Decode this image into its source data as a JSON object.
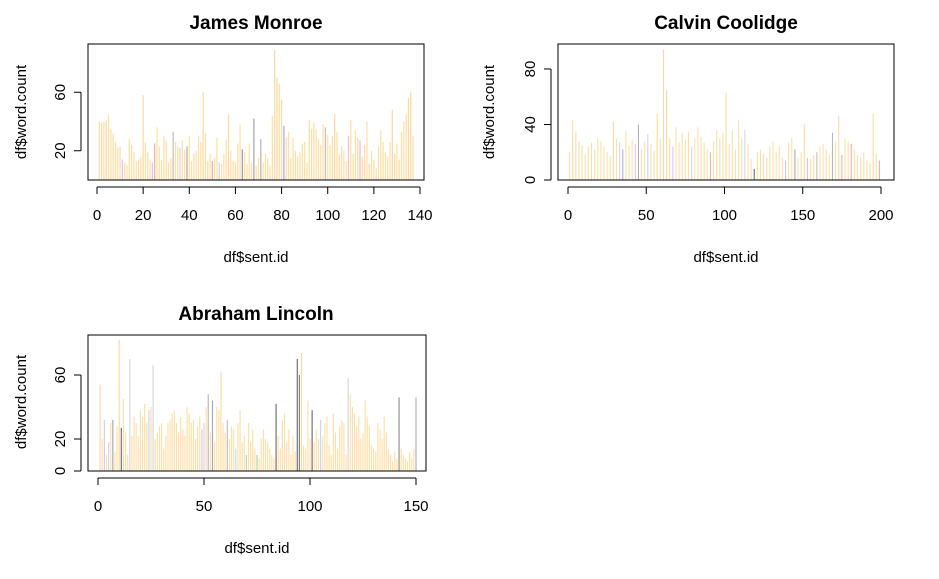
{
  "figure": {
    "ylabel": "df$word.count",
    "xlabel": "df$sent.id"
  },
  "chart_data": [
    {
      "type": "bar",
      "title": "James Monroe",
      "xlabel": "df$sent.id",
      "ylabel": "df$word.count",
      "xlim": [
        0,
        140
      ],
      "ylim": [
        0,
        93
      ],
      "xticks": [
        0,
        20,
        40,
        60,
        80,
        100,
        120,
        140
      ],
      "yticks": [
        20,
        60
      ],
      "grid": false,
      "x": [
        1,
        2,
        3,
        4,
        5,
        6,
        7,
        8,
        9,
        10,
        11,
        12,
        13,
        14,
        15,
        16,
        17,
        18,
        19,
        20,
        21,
        22,
        23,
        24,
        25,
        26,
        27,
        28,
        29,
        30,
        31,
        32,
        33,
        34,
        35,
        36,
        37,
        38,
        39,
        40,
        41,
        42,
        43,
        44,
        45,
        46,
        47,
        48,
        49,
        50,
        51,
        52,
        53,
        54,
        55,
        56,
        57,
        58,
        59,
        60,
        61,
        62,
        63,
        64,
        65,
        66,
        67,
        68,
        69,
        70,
        71,
        72,
        73,
        74,
        75,
        76,
        77,
        78,
        79,
        80,
        81,
        82,
        83,
        84,
        85,
        86,
        87,
        88,
        89,
        90,
        91,
        92,
        93,
        94,
        95,
        96,
        97,
        98,
        99,
        100,
        101,
        102,
        103,
        104,
        105,
        106,
        107,
        108,
        109,
        110,
        111,
        112,
        113,
        114,
        115,
        116,
        117,
        118,
        119,
        120,
        121,
        122,
        123,
        124,
        125,
        126,
        127,
        128,
        129,
        130,
        131,
        132,
        133,
        134,
        135,
        136,
        137
      ],
      "values": [
        40,
        39,
        40,
        41,
        45,
        35,
        32,
        26,
        22,
        23,
        14,
        12,
        10,
        28,
        24,
        19,
        13,
        14,
        16,
        58,
        26,
        19,
        14,
        12,
        25,
        36,
        23,
        14,
        30,
        27,
        12,
        15,
        33,
        26,
        23,
        22,
        27,
        21,
        23,
        30,
        13,
        18,
        20,
        30,
        26,
        60,
        32,
        13,
        18,
        13,
        15,
        29,
        12,
        11,
        18,
        27,
        45,
        20,
        13,
        12,
        25,
        38,
        21,
        19,
        11,
        25,
        12,
        42,
        10,
        15,
        28,
        12,
        18,
        15,
        10,
        44,
        89,
        70,
        66,
        55,
        37,
        29,
        33,
        15,
        29,
        20,
        16,
        19,
        25,
        26,
        12,
        41,
        35,
        39,
        35,
        28,
        24,
        38,
        36,
        31,
        24,
        30,
        45,
        33,
        17,
        23,
        20,
        13,
        30,
        41,
        18,
        34,
        29,
        27,
        16,
        24,
        40,
        11,
        20,
        14,
        8,
        23,
        34,
        26,
        19,
        16,
        26,
        48,
        18,
        25,
        14,
        33,
        40,
        45,
        56,
        60,
        30
      ],
      "colors": [
        "#FFDFA8",
        "#FFDFA8",
        "#FFDFA8",
        "#FFD9A0",
        "#FFDFA8",
        "#FFDFA8",
        "#FFDFA8",
        "#FFDFA8",
        "#FFDFA8",
        "#FFDFA8",
        "#D8C8F0",
        "#FFDFA8",
        "#FFDFA8",
        "#FFDFA8",
        "#FFDFA8",
        "#FFDFA8",
        "#FFDFA8",
        "#FFDFA8",
        "#FFDFA8",
        "#FFD9A0",
        "#FFDFA8",
        "#FFDFA8",
        "#FFDFA8",
        "#D8C8F0",
        "#F4B0A8",
        "#FFDFA8",
        "#FFDFA8",
        "#FFDFA8",
        "#FFDFA8",
        "#FFDFA8",
        "#FFDFA8",
        "#FFDFA8",
        "#C0C0C0",
        "#FFDFA8",
        "#FFDFA8",
        "#D8D8D8",
        "#FFDFA8",
        "#FFDFA8",
        "#B0B0B0",
        "#FFDFA8",
        "#FFDFA8",
        "#FFDFA8",
        "#FFDFA8",
        "#FFDFA8",
        "#FFDFA8",
        "#FFD9A0",
        "#FFDFA8",
        "#FFDFA8",
        "#FFDFA8",
        "#F4B0A8",
        "#FFDFA8",
        "#FFDFA8",
        "#C8D8F0",
        "#FFDFA8",
        "#FFDFA8",
        "#FFDFA8",
        "#FFD9A0",
        "#FFDFA8",
        "#FFDFA8",
        "#FFDFA8",
        "#FFDFA8",
        "#FFDFA8",
        "#A0A0A0",
        "#FFDFA8",
        "#FFDFA8",
        "#FFDFA8",
        "#FFDFA8",
        "#A8A8A8",
        "#FFDFA8",
        "#FFDFA8",
        "#B8B8B8",
        "#FFDFA8",
        "#FFDFA8",
        "#FFDFA8",
        "#FFDFA8",
        "#FFDFA8",
        "#FFD9A0",
        "#FFD9A0",
        "#FFDFA8",
        "#FFDFA8",
        "#B8A8E0",
        "#FFDFA8",
        "#FFDFA8",
        "#FFDFA8",
        "#FFDFA8",
        "#FFDFA8",
        "#FFDFA8",
        "#FFDFA8",
        "#FFDFA8",
        "#FFDFA8",
        "#FFDFA8",
        "#FFDFA8",
        "#FFDFA8",
        "#FFDFA8",
        "#FFDFA8",
        "#FFDFA8",
        "#FFDFA8",
        "#FFDFA8",
        "#C0C0C0",
        "#FFDFA8",
        "#FFDFA8",
        "#FFDFA8",
        "#FFD9A0",
        "#FFDFA8",
        "#FFDFA8",
        "#FFDFA8",
        "#FFDFA8",
        "#FFDFA8",
        "#F8C0C0",
        "#FFDFA8",
        "#FFDFA8",
        "#FFDFA8",
        "#FFDFA8",
        "#F4B8D0",
        "#FFDFA8",
        "#FFDFA8",
        "#FFDFA8",
        "#FFDFA8",
        "#FFDFA8",
        "#FFDFA8",
        "#FFDFA8",
        "#FFDFA8",
        "#FFDFA8",
        "#FFDFA8",
        "#FFDFA8",
        "#FFDFA8",
        "#FFDFA8",
        "#FFD9A0",
        "#FFDFA8",
        "#FFDFA8",
        "#FFDFA8",
        "#FFDFA8",
        "#FFDFA8",
        "#FFDFA8",
        "#FFD9A0",
        "#FFD9A0",
        "#FFDFA8"
      ]
    },
    {
      "type": "bar",
      "title": "Calvin Coolidge",
      "xlabel": "df$sent.id",
      "ylabel": "df$word.count",
      "xlim": [
        0,
        200
      ],
      "ylim": [
        0,
        98
      ],
      "xticks": [
        0,
        50,
        100,
        150,
        200
      ],
      "yticks": [
        0,
        40,
        80
      ],
      "grid": false,
      "x": [
        1,
        3,
        5,
        7,
        9,
        11,
        13,
        15,
        17,
        19,
        21,
        23,
        25,
        27,
        29,
        31,
        33,
        35,
        37,
        39,
        41,
        43,
        45,
        47,
        49,
        51,
        53,
        55,
        57,
        59,
        61,
        63,
        65,
        67,
        69,
        71,
        73,
        75,
        77,
        79,
        81,
        83,
        85,
        87,
        89,
        91,
        93,
        95,
        97,
        99,
        101,
        103,
        105,
        107,
        109,
        111,
        113,
        115,
        117,
        119,
        121,
        123,
        125,
        127,
        129,
        131,
        133,
        135,
        137,
        139,
        141,
        143,
        145,
        147,
        149,
        151,
        153,
        155,
        157,
        159,
        161,
        163,
        165,
        167,
        169,
        171,
        173,
        175,
        177,
        179,
        181,
        183,
        185,
        187,
        189,
        191,
        193,
        195,
        197,
        199
      ],
      "values": [
        20,
        43,
        35,
        28,
        25,
        18,
        24,
        27,
        22,
        30,
        28,
        24,
        20,
        17,
        42,
        30,
        27,
        22,
        35,
        25,
        29,
        26,
        40,
        22,
        28,
        33,
        26,
        21,
        48,
        30,
        94,
        65,
        30,
        24,
        38,
        27,
        34,
        29,
        35,
        24,
        30,
        38,
        31,
        27,
        22,
        20,
        28,
        36,
        30,
        34,
        63,
        26,
        36,
        22,
        43,
        30,
        36,
        26,
        15,
        8,
        20,
        22,
        19,
        16,
        24,
        28,
        20,
        24,
        16,
        14,
        27,
        30,
        22,
        16,
        20,
        40,
        16,
        15,
        18,
        20,
        24,
        26,
        22,
        18,
        34,
        28,
        46,
        18,
        30,
        28,
        26,
        22,
        18,
        16,
        20,
        14,
        12,
        48,
        19,
        14
      ],
      "colors": [
        "#FFDFA8",
        "#FFD9A0",
        "#FFDFA8",
        "#FFDFA8",
        "#FFDFA8",
        "#FFDFA8",
        "#FFDFA8",
        "#FFDFA8",
        "#FFDFA8",
        "#FFDFA8",
        "#FFDFA8",
        "#FFDFA8",
        "#FFDFA8",
        "#FFDFA8",
        "#FFD9A0",
        "#FFDFA8",
        "#C8D8F0",
        "#B8A8E0",
        "#FFDFA8",
        "#FFDFA8",
        "#FFDFA8",
        "#D8C8F0",
        "#B0B0B0",
        "#FFDFA8",
        "#FFDFA8",
        "#C8D8F0",
        "#FFDFA8",
        "#FFDFA8",
        "#FFD9A0",
        "#FFDFA8",
        "#FFD9A0",
        "#FFD9A0",
        "#FFDFA8",
        "#D8C8F0",
        "#FFDFA8",
        "#FFDFA8",
        "#FFDFA8",
        "#FFDFA8",
        "#FFDFA8",
        "#C8D8F0",
        "#FFDFA8",
        "#FFDFA8",
        "#FFDFA8",
        "#FFDFA8",
        "#FFDFA8",
        "#F4B0A8",
        "#FFDFA8",
        "#FFDFA8",
        "#FFDFA8",
        "#FFDFA8",
        "#FFD9A0",
        "#FFDFA8",
        "#FFDFA8",
        "#FFDFA8",
        "#FFDFA8",
        "#FFDFA8",
        "#D8D8D8",
        "#FFDFA8",
        "#FFDFA8",
        "#707070",
        "#FFDFA8",
        "#FFDFA8",
        "#FFDFA8",
        "#FFDFA8",
        "#FFDFA8",
        "#FFDFA8",
        "#FFDFA8",
        "#FFDFA8",
        "#FFDFA8",
        "#C8C8E8",
        "#FFDFA8",
        "#FFDFA8",
        "#A8A8A8",
        "#FFDFA8",
        "#FFDFA8",
        "#FFD9A0",
        "#F4B8D0",
        "#FFDFA8",
        "#FFDFA8",
        "#C0C0C0",
        "#FFDFA8",
        "#FFDFA8",
        "#FFDFA8",
        "#FFDFA8",
        "#B8B8B8",
        "#FFDFA8",
        "#FFD9A0",
        "#F4B0A8",
        "#FFDFA8",
        "#FFDFA8",
        "#F4B0A8",
        "#FFDFA8",
        "#FFDFA8",
        "#FFDFA8",
        "#FFDFA8",
        "#FFDFA8",
        "#FFDFA8",
        "#FFD9A0",
        "#FFDFA8",
        "#F4B0A8"
      ]
    },
    {
      "type": "bar",
      "title": "Abraham Lincoln",
      "xlabel": "df$sent.id",
      "ylabel": "df$word.count",
      "xlim": [
        0,
        150
      ],
      "ylim": [
        0,
        85
      ],
      "xticks": [
        0,
        50,
        100,
        150
      ],
      "yticks": [
        0,
        20,
        60
      ],
      "grid": false,
      "x": [
        1,
        2,
        3,
        4,
        5,
        6,
        7,
        8,
        9,
        10,
        11,
        12,
        13,
        14,
        15,
        16,
        17,
        18,
        19,
        20,
        21,
        22,
        23,
        24,
        25,
        26,
        27,
        28,
        29,
        30,
        31,
        32,
        33,
        34,
        35,
        36,
        37,
        38,
        39,
        40,
        41,
        42,
        43,
        44,
        45,
        46,
        47,
        48,
        49,
        50,
        51,
        52,
        53,
        54,
        55,
        56,
        57,
        58,
        59,
        60,
        61,
        62,
        63,
        64,
        65,
        66,
        67,
        68,
        69,
        70,
        71,
        72,
        73,
        74,
        75,
        76,
        77,
        78,
        79,
        80,
        81,
        82,
        83,
        84,
        85,
        86,
        87,
        88,
        89,
        90,
        91,
        92,
        93,
        94,
        95,
        96,
        97,
        98,
        99,
        100,
        101,
        102,
        103,
        104,
        105,
        106,
        107,
        108,
        109,
        110,
        111,
        112,
        113,
        114,
        115,
        116,
        117,
        118,
        119,
        120,
        121,
        122,
        123,
        124,
        125,
        126,
        127,
        128,
        129,
        130,
        131,
        132,
        133,
        134,
        135,
        136,
        137,
        138,
        139,
        140,
        141,
        142,
        143,
        144,
        145,
        146,
        147,
        148,
        149,
        150
      ],
      "values": [
        54,
        20,
        32,
        10,
        18,
        30,
        32,
        12,
        28,
        82,
        27,
        45,
        24,
        10,
        70,
        22,
        34,
        30,
        22,
        38,
        34,
        42,
        30,
        38,
        40,
        66,
        20,
        24,
        28,
        30,
        14,
        22,
        30,
        32,
        36,
        38,
        30,
        24,
        34,
        26,
        22,
        40,
        36,
        30,
        32,
        20,
        28,
        34,
        26,
        30,
        40,
        48,
        24,
        44,
        18,
        40,
        38,
        62,
        30,
        24,
        32,
        20,
        28,
        26,
        14,
        30,
        38,
        18,
        22,
        10,
        30,
        18,
        26,
        14,
        10,
        8,
        20,
        26,
        20,
        18,
        14,
        10,
        8,
        42,
        22,
        14,
        32,
        36,
        18,
        26,
        10,
        22,
        12,
        70,
        60,
        74,
        16,
        14,
        44,
        20,
        38,
        18,
        26,
        20,
        32,
        22,
        30,
        34,
        16,
        10,
        36,
        24,
        14,
        28,
        32,
        30,
        10,
        58,
        48,
        40,
        36,
        28,
        34,
        20,
        24,
        44,
        34,
        28,
        16,
        14,
        12,
        30,
        26,
        20,
        34,
        24,
        14,
        10,
        6,
        12,
        8,
        46,
        14,
        10,
        8,
        6,
        12,
        8,
        14,
        46
      ],
      "colors": [
        "#FFD9A0",
        "#FFDFA8",
        "#D8C8F0",
        "#FFDFA8",
        "#C8D8F0",
        "#FFDFA8",
        "#A8A8A8",
        "#FFDFA8",
        "#FFDFA8",
        "#FFD9A0",
        "#707070",
        "#FFDFA8",
        "#FFDFA8",
        "#FFDFA8",
        "#D8D8D8",
        "#FFDFA8",
        "#FFDFA8",
        "#FFDFA8",
        "#FFDFA8",
        "#FFDFA8",
        "#FFDFA8",
        "#FFDFA8",
        "#FFDFA8",
        "#C8D8F0",
        "#FFDFA8",
        "#D8D8D8",
        "#FFDFA8",
        "#FFDFA8",
        "#FFDFA8",
        "#FFDFA8",
        "#FFDFA8",
        "#FFDFA8",
        "#FFDFA8",
        "#FFDFA8",
        "#FFDFA8",
        "#FFDFA8",
        "#FFDFA8",
        "#FFDFA8",
        "#FFDFA8",
        "#FFDFA8",
        "#FFDFA8",
        "#FFDFA8",
        "#FFDFA8",
        "#FFDFA8",
        "#FFDFA8",
        "#FFDFA8",
        "#FFDFA8",
        "#FFDFA8",
        "#D8C8F0",
        "#D8D8D8",
        "#FFDFA8",
        "#B8B8B8",
        "#FFDFA8",
        "#A8A8A8",
        "#FFDFA8",
        "#FFDFA8",
        "#FFDFA8",
        "#FFD9A0",
        "#FFDFA8",
        "#FFDFA8",
        "#C0C0C0",
        "#FFDFA8",
        "#FFDFA8",
        "#FFDFA8",
        "#C8D8F0",
        "#FFDFA8",
        "#FFDFA8",
        "#FFDFA8",
        "#FFDFA8",
        "#B8D8B0",
        "#FFDFA8",
        "#FFDFA8",
        "#FFDFA8",
        "#FFDFA8",
        "#A8D8A0",
        "#FFDFA8",
        "#FFDFA8",
        "#FFDFA8",
        "#FFDFA8",
        "#FFDFA8",
        "#FFDFA8",
        "#FFDFA8",
        "#FFDFA8",
        "#707070",
        "#FFDFA8",
        "#FFDFA8",
        "#FFDFA8",
        "#FFDFA8",
        "#FFDFA8",
        "#FFDFA8",
        "#FFDFA8",
        "#FFDFA8",
        "#FFDFA8",
        "#707070",
        "#808080",
        "#FFD9A0",
        "#FFDFA8",
        "#FFDFA8",
        "#FFDFA8",
        "#FFDFA8",
        "#707070",
        "#FFDFA8",
        "#FFDFA8",
        "#FFDFA8",
        "#C8D8F0",
        "#FFDFA8",
        "#FFDFA8",
        "#FFDFA8",
        "#FFDFA8",
        "#FFDFA8",
        "#FFDFA8",
        "#FFDFA8",
        "#FFDFA8",
        "#FFDFA8",
        "#FFDFA8",
        "#FFDFA8",
        "#FFDFA8",
        "#D8D8D8",
        "#FFDFA8",
        "#FFDFA8",
        "#FFDFA8",
        "#FFDFA8",
        "#FFDFA8",
        "#FFDFA8",
        "#FFDFA8",
        "#FFDFA8",
        "#FFDFA8",
        "#FFDFA8",
        "#FFDFA8",
        "#FFDFA8",
        "#FFDFA8",
        "#FFDFA8",
        "#FFDFA8",
        "#FFDFA8",
        "#FFDFA8",
        "#FFDFA8",
        "#FFDFA8",
        "#FFDFA8",
        "#FFDFA8",
        "#FFDFA8",
        "#FFDFA8",
        "#909090",
        "#FFDFA8",
        "#FFDFA8",
        "#FFDFA8",
        "#FFDFA8",
        "#FFDFA8",
        "#FFDFA8",
        "#FFDFA8",
        "#B0B0B0"
      ]
    }
  ]
}
